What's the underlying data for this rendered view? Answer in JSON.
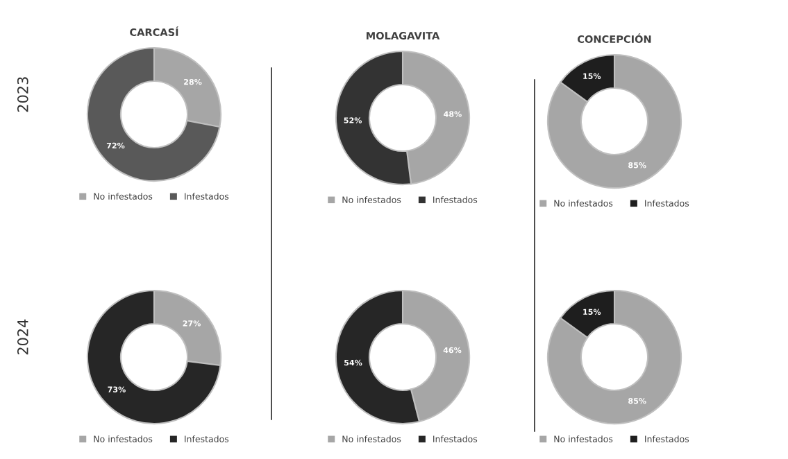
{
  "chart_data": [
    {
      "type": "donut",
      "title": "CARCASÍ",
      "annotations": [
        "2023"
      ],
      "categories": [
        "No infestados",
        "Infestados"
      ],
      "values": [
        28,
        72
      ],
      "colors": [
        "#a6a6a6",
        "#595959"
      ],
      "value_labels": [
        "28%",
        "72%"
      ],
      "legend": "bottom"
    },
    {
      "type": "donut",
      "title": "MOLAGAVITA",
      "categories": [
        "No infestados",
        "Infestados"
      ],
      "values": [
        48,
        52
      ],
      "colors": [
        "#a6a6a6",
        "#333333"
      ],
      "value_labels": [
        "48%",
        "52%"
      ],
      "legend": "bottom"
    },
    {
      "type": "donut",
      "title": "CONCEPCIÓN",
      "categories": [
        "No infestados",
        "Infestados"
      ],
      "values": [
        85,
        15
      ],
      "colors": [
        "#a6a6a6",
        "#1e1e1e"
      ],
      "value_labels": [
        "85%",
        "15%"
      ],
      "legend": "bottom"
    },
    {
      "type": "donut",
      "annotations": [
        "2024"
      ],
      "categories": [
        "No infestados",
        "Infestados"
      ],
      "values": [
        27,
        73
      ],
      "colors": [
        "#a6a6a6",
        "#262626"
      ],
      "value_labels": [
        "27%",
        "73%"
      ],
      "legend": "bottom"
    },
    {
      "type": "donut",
      "categories": [
        "No infestados",
        "Infestados"
      ],
      "values": [
        46,
        54
      ],
      "colors": [
        "#a6a6a6",
        "#262626"
      ],
      "value_labels": [
        "46%",
        "54%"
      ],
      "legend": "bottom"
    },
    {
      "type": "donut",
      "categories": [
        "No infestados",
        "Infestados"
      ],
      "values": [
        85,
        15
      ],
      "colors": [
        "#a6a6a6",
        "#1e1e1e"
      ],
      "value_labels": [
        "85%",
        "15%"
      ],
      "legend": "bottom"
    }
  ]
}
